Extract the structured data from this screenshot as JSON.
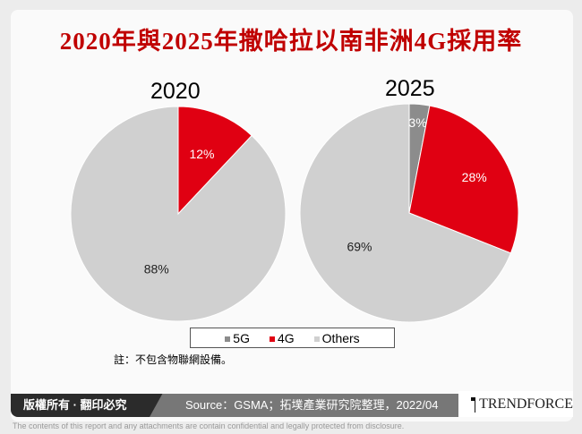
{
  "title": "2020年與2025年撒哈拉以南非洲4G採用率",
  "chart_data": [
    {
      "type": "pie",
      "title": "2020",
      "categories": [
        "4G",
        "Others"
      ],
      "values": [
        12,
        88
      ],
      "labels": [
        "12%",
        "88%"
      ],
      "colors": [
        "#e00012",
        "#d0d0d0"
      ]
    },
    {
      "type": "pie",
      "title": "2025",
      "categories": [
        "5G",
        "4G",
        "Others"
      ],
      "values": [
        3,
        28,
        69
      ],
      "labels": [
        "3%",
        "28%",
        "69%"
      ],
      "colors": [
        "#8c8c8c",
        "#e00012",
        "#d0d0d0"
      ]
    }
  ],
  "legend": [
    {
      "label": "5G",
      "color": "#8c8c8c"
    },
    {
      "label": "4G",
      "color": "#e00012"
    },
    {
      "label": "Others",
      "color": "#d0d0d0"
    }
  ],
  "note": "註：不包含物聯網設備。",
  "footer": {
    "copyright": "版權所有 · 翻印必究",
    "source": "Source：GSMA；拓墣產業研究院整理，2022/04",
    "brand": "TRENDFORCE",
    "disclaimer": "The contents of this report and any attachments are contain confidential and legally protected from disclosure."
  }
}
